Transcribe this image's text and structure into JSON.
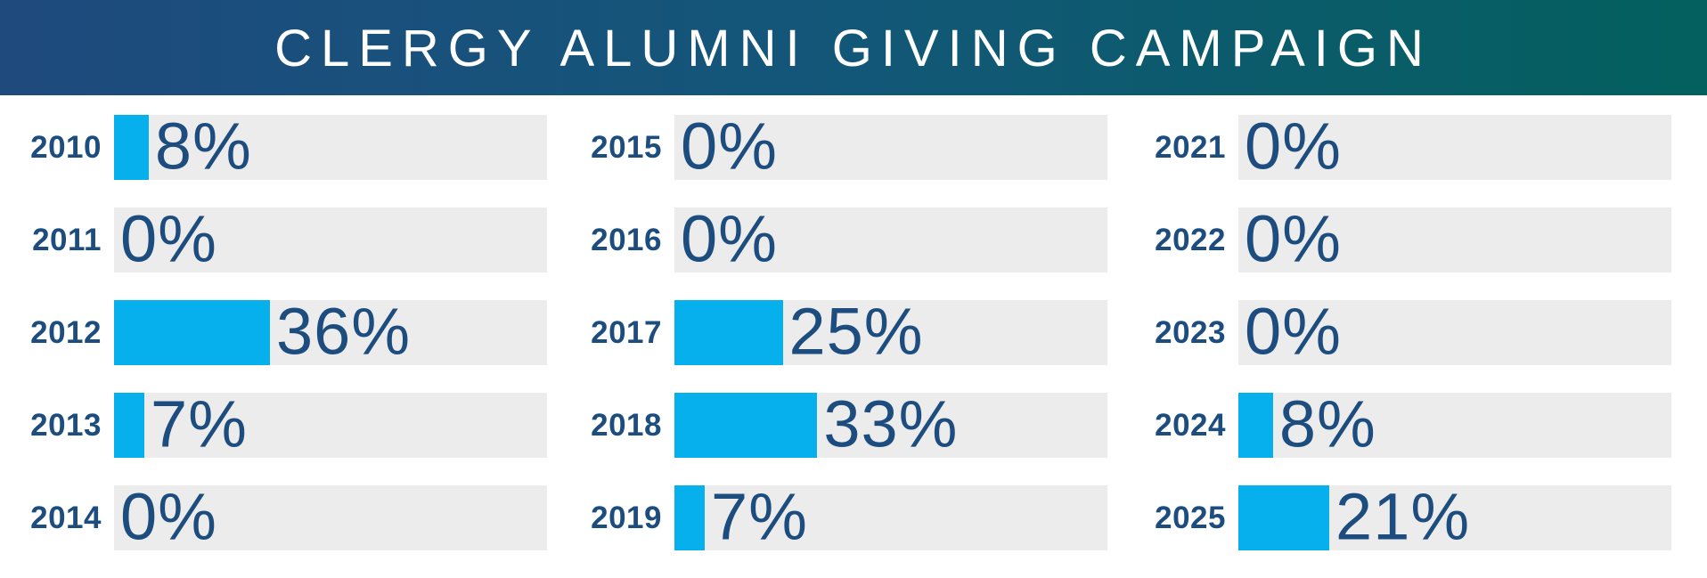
{
  "header": {
    "title": "CLERGY ALUMNI GIVING CAMPAIGN"
  },
  "colors": {
    "bar_fill": "#06b0ec",
    "bar_track": "#ececec",
    "text_navy": "#1d4d7f",
    "header_gradient_start": "#1e4a7d",
    "header_gradient_end": "#03605e",
    "title_text": "#ffffff"
  },
  "chart_data": {
    "type": "bar",
    "orientation": "horizontal",
    "title": "CLERGY ALUMNI GIVING CAMPAIGN",
    "unit": "%",
    "value_axis_range": [
      0,
      100
    ],
    "grid": false,
    "legend": false,
    "categories": [
      "2010",
      "2011",
      "2012",
      "2013",
      "2014",
      "2015",
      "2016",
      "2017",
      "2018",
      "2019",
      "2021",
      "2022",
      "2023",
      "2024",
      "2025"
    ],
    "values": [
      8,
      0,
      36,
      7,
      0,
      0,
      0,
      25,
      33,
      7,
      0,
      0,
      0,
      8,
      21
    ],
    "columns": [
      {
        "rows": [
          {
            "year": "2010",
            "value": 8,
            "label": "8%"
          },
          {
            "year": "2011",
            "value": 0,
            "label": "0%"
          },
          {
            "year": "2012",
            "value": 36,
            "label": "36%"
          },
          {
            "year": "2013",
            "value": 7,
            "label": "7%"
          },
          {
            "year": "2014",
            "value": 0,
            "label": "0%"
          }
        ]
      },
      {
        "rows": [
          {
            "year": "2015",
            "value": 0,
            "label": "0%"
          },
          {
            "year": "2016",
            "value": 0,
            "label": "0%"
          },
          {
            "year": "2017",
            "value": 25,
            "label": "25%"
          },
          {
            "year": "2018",
            "value": 33,
            "label": "33%"
          },
          {
            "year": "2019",
            "value": 7,
            "label": "7%"
          }
        ]
      },
      {
        "rows": [
          {
            "year": "2021",
            "value": 0,
            "label": "0%"
          },
          {
            "year": "2022",
            "value": 0,
            "label": "0%"
          },
          {
            "year": "2023",
            "value": 0,
            "label": "0%"
          },
          {
            "year": "2024",
            "value": 8,
            "label": "8%"
          },
          {
            "year": "2025",
            "value": 21,
            "label": "21%"
          }
        ]
      }
    ]
  }
}
